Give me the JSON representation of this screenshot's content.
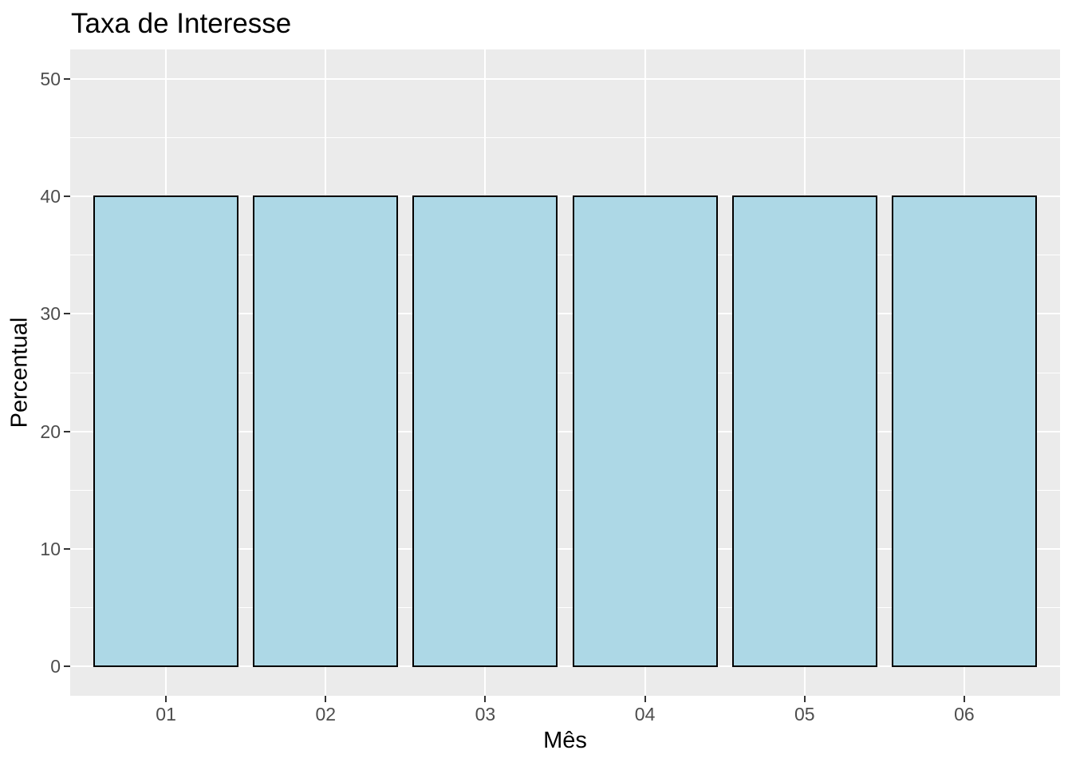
{
  "chart_data": {
    "type": "bar",
    "title": "Taxa de Interesse",
    "xlabel": "Mês",
    "ylabel": "Percentual",
    "categories": [
      "01",
      "02",
      "03",
      "04",
      "05",
      "06"
    ],
    "values": [
      40,
      40,
      40,
      40,
      40,
      40
    ],
    "ylim": [
      0,
      50
    ],
    "y_major_ticks": [
      0,
      10,
      20,
      30,
      40,
      50
    ],
    "y_minor_ticks": [
      5,
      15,
      25,
      35,
      45
    ],
    "grid": true,
    "legend": "none",
    "colors": {
      "bar_fill": "#ADD8E6",
      "bar_stroke": "#000000",
      "panel_background": "#EBEBEB",
      "gridline": "#FFFFFF",
      "tick_label": "#4D4D4D",
      "tick_mark": "#333333",
      "title_text": "#000000"
    }
  }
}
